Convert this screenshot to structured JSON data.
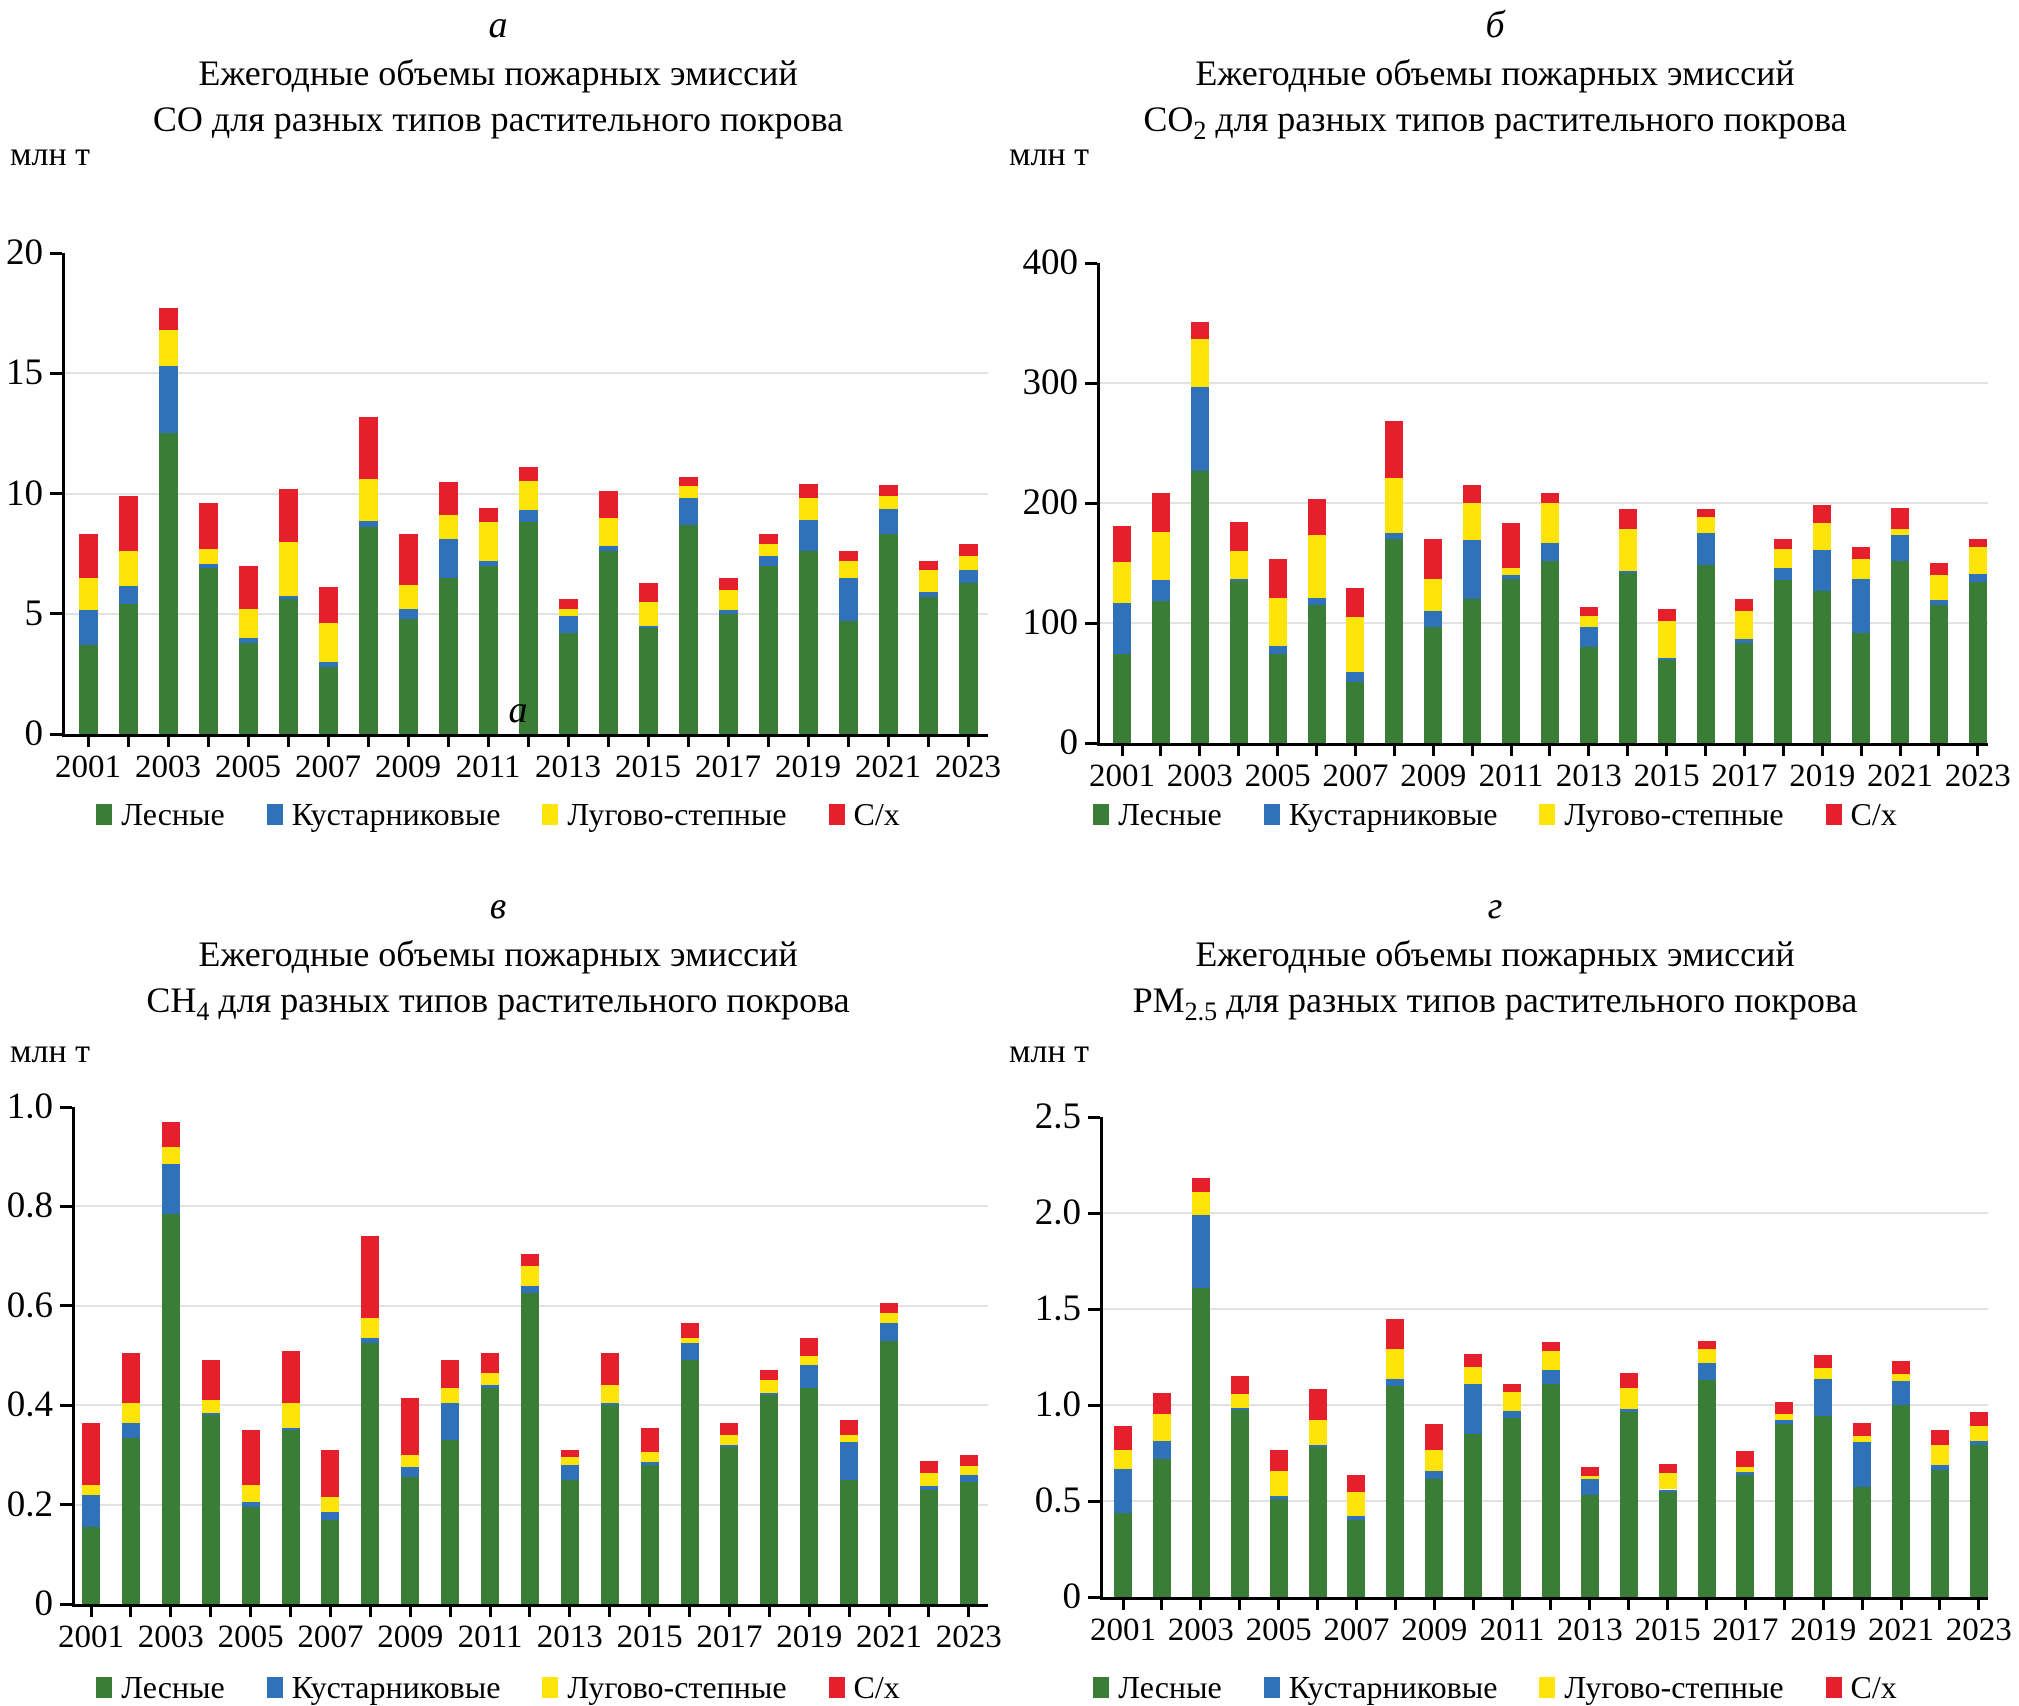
{
  "page": {
    "background": "#ffffff"
  },
  "colors": {
    "forest_green": "#3A7D36",
    "shrub_blue": "#2F72B9",
    "meadow_yellow": "#FFE40B",
    "agri_red": "#E51F2C",
    "gridline": "#E2E2E2",
    "axis": "#000000"
  },
  "legend": [
    {
      "label": "Лесные",
      "color": "#3A7D36"
    },
    {
      "label": "Кустарниковые",
      "color": "#2F72B9"
    },
    {
      "label": "Лугово-степные",
      "color": "#FFE40B"
    },
    {
      "label": "С/х",
      "color": "#E51F2C"
    }
  ],
  "stray_label": "а",
  "chart_data": [
    {
      "type": "bar",
      "stacked": true,
      "panel_letter": "а",
      "title_line1": "Ежегодные объемы пожарных эмиссий",
      "formula": "CO",
      "formula_sub": "",
      "title_rest": " для разных типов растительного покрова",
      "ylabel": "млн т",
      "ylim": [
        0,
        20
      ],
      "yticks": [
        0,
        5,
        10,
        15,
        20
      ],
      "ytick_labels": [
        "0",
        "5",
        "10",
        "15",
        "20"
      ],
      "grid": true,
      "categories": [
        2001,
        2002,
        2003,
        2004,
        2005,
        2006,
        2007,
        2008,
        2009,
        2010,
        2011,
        2012,
        2013,
        2014,
        2015,
        2016,
        2017,
        2018,
        2019,
        2020,
        2021,
        2022,
        2023
      ],
      "xtick_labels": [
        "2001",
        "2003",
        "2005",
        "2007",
        "2009",
        "2011",
        "2013",
        "2015",
        "2017",
        "2019",
        "2021",
        "2023"
      ],
      "series": [
        {
          "name": "Лесные",
          "color": "#3A7D36",
          "values": [
            3.7,
            5.4,
            12.5,
            6.9,
            3.8,
            5.6,
            2.8,
            8.6,
            4.8,
            6.5,
            7.0,
            8.8,
            4.2,
            7.6,
            4.4,
            8.7,
            5.0,
            7.0,
            7.6,
            4.7,
            8.3,
            5.7,
            6.3
          ]
        },
        {
          "name": "Кустарниковые",
          "color": "#2F72B9",
          "values": [
            1.45,
            0.75,
            2.8,
            0.15,
            0.2,
            0.15,
            0.2,
            0.25,
            0.4,
            1.6,
            0.2,
            0.5,
            0.7,
            0.2,
            0.1,
            1.1,
            0.15,
            0.4,
            1.3,
            1.8,
            1.05,
            0.2,
            0.5
          ]
        },
        {
          "name": "Лугово-степные",
          "color": "#FFE40B",
          "values": [
            1.35,
            1.45,
            1.5,
            0.65,
            1.2,
            2.25,
            1.6,
            1.75,
            1.0,
            1.0,
            1.6,
            1.2,
            0.3,
            1.2,
            1.0,
            0.5,
            0.85,
            0.5,
            0.9,
            0.7,
            0.55,
            0.9,
            0.6
          ]
        },
        {
          "name": "С/х",
          "color": "#E51F2C",
          "values": [
            1.8,
            2.3,
            0.9,
            1.9,
            1.8,
            2.2,
            1.5,
            2.6,
            2.1,
            1.4,
            0.6,
            0.6,
            0.4,
            1.1,
            0.8,
            0.4,
            0.5,
            0.4,
            0.6,
            0.4,
            0.45,
            0.4,
            0.5
          ]
        }
      ]
    },
    {
      "type": "bar",
      "stacked": true,
      "panel_letter": "б",
      "title_line1": "Ежегодные объемы пожарных эмиссий",
      "formula": "CO",
      "formula_sub": "2",
      "title_rest": " для разных типов растительного покрова",
      "ylabel": "млн т",
      "ylim": [
        0,
        400
      ],
      "yticks": [
        0,
        100,
        200,
        300,
        400
      ],
      "ytick_labels": [
        "0",
        "100",
        "200",
        "300",
        "400"
      ],
      "grid": true,
      "categories": [
        2001,
        2002,
        2003,
        2004,
        2005,
        2006,
        2007,
        2008,
        2009,
        2010,
        2011,
        2012,
        2013,
        2014,
        2015,
        2016,
        2017,
        2018,
        2019,
        2020,
        2021,
        2022,
        2023
      ],
      "xtick_labels": [
        "2001",
        "2003",
        "2005",
        "2007",
        "2009",
        "2011",
        "2013",
        "2015",
        "2017",
        "2019",
        "2021",
        "2023"
      ],
      "series": [
        {
          "name": "Лесные",
          "color": "#3A7D36",
          "values": [
            74,
            118,
            227,
            135,
            74,
            115,
            51,
            170,
            97,
            120,
            137,
            152,
            80,
            142,
            69,
            148,
            83,
            136,
            127,
            92,
            152,
            115,
            134
          ]
        },
        {
          "name": "Кустарниковые",
          "color": "#2F72B9",
          "values": [
            43,
            18,
            70,
            2,
            7,
            6,
            8,
            5,
            13,
            49,
            3,
            15,
            17,
            1,
            2,
            27,
            4,
            10,
            34,
            45,
            21,
            4,
            7
          ]
        },
        {
          "name": "Лугово-степные",
          "color": "#FFE40B",
          "values": [
            34,
            40,
            40,
            23,
            40,
            52,
            46,
            46,
            27,
            31,
            6,
            33,
            9,
            35,
            31,
            13,
            23,
            16,
            22,
            16,
            5,
            21,
            22
          ]
        },
        {
          "name": "С/х",
          "color": "#E51F2C",
          "values": [
            30,
            32,
            14,
            24,
            32,
            30,
            24,
            47,
            33,
            15,
            37,
            8,
            7,
            17,
            10,
            7,
            10,
            8,
            15,
            10,
            18,
            10,
            7
          ]
        }
      ]
    },
    {
      "type": "bar",
      "stacked": true,
      "panel_letter": "в",
      "title_line1": "Ежегодные объемы пожарных эмиссий",
      "formula": "CH",
      "formula_sub": "4",
      "title_rest": " для разных типов растительного покрова",
      "ylabel": "млн т",
      "ylim": [
        0,
        1.0
      ],
      "yticks": [
        0,
        0.2,
        0.4,
        0.6,
        0.8,
        1.0
      ],
      "ytick_labels": [
        "0",
        "0.2",
        "0.4",
        "0.6",
        "0.8",
        "1.0"
      ],
      "grid": true,
      "categories": [
        2001,
        2002,
        2003,
        2004,
        2005,
        2006,
        2007,
        2008,
        2009,
        2010,
        2011,
        2012,
        2013,
        2014,
        2015,
        2016,
        2017,
        2018,
        2019,
        2020,
        2021,
        2022,
        2023
      ],
      "xtick_labels": [
        "2001",
        "2003",
        "2005",
        "2007",
        "2009",
        "2011",
        "2013",
        "2015",
        "2017",
        "2019",
        "2021",
        "2023"
      ],
      "series": [
        {
          "name": "Лесные",
          "color": "#3A7D36",
          "values": [
            0.155,
            0.335,
            0.785,
            0.38,
            0.195,
            0.35,
            0.17,
            0.525,
            0.255,
            0.33,
            0.435,
            0.625,
            0.25,
            0.4,
            0.28,
            0.49,
            0.315,
            0.42,
            0.435,
            0.25,
            0.53,
            0.23,
            0.245
          ]
        },
        {
          "name": "Кустарниковые",
          "color": "#2F72B9",
          "values": [
            0.065,
            0.03,
            0.1,
            0.005,
            0.01,
            0.005,
            0.015,
            0.01,
            0.02,
            0.075,
            0.005,
            0.015,
            0.03,
            0.005,
            0.005,
            0.035,
            0.005,
            0.005,
            0.045,
            0.075,
            0.035,
            0.007,
            0.015
          ]
        },
        {
          "name": "Лугово-степные",
          "color": "#FFE40B",
          "values": [
            0.02,
            0.04,
            0.035,
            0.025,
            0.035,
            0.05,
            0.03,
            0.04,
            0.025,
            0.03,
            0.025,
            0.04,
            0.015,
            0.035,
            0.02,
            0.01,
            0.02,
            0.025,
            0.02,
            0.015,
            0.02,
            0.026,
            0.018
          ]
        },
        {
          "name": "С/х",
          "color": "#E51F2C",
          "values": [
            0.125,
            0.1,
            0.05,
            0.08,
            0.11,
            0.105,
            0.095,
            0.165,
            0.115,
            0.055,
            0.04,
            0.025,
            0.015,
            0.065,
            0.05,
            0.03,
            0.025,
            0.02,
            0.035,
            0.03,
            0.02,
            0.024,
            0.022
          ]
        }
      ]
    },
    {
      "type": "bar",
      "stacked": true,
      "panel_letter": "г",
      "title_line1": "Ежегодные объемы пожарных эмиссий",
      "formula": "PM",
      "formula_sub": "2.5",
      "title_rest": " для разных типов растительного покрова",
      "ylabel": "млн т",
      "ylim": [
        0,
        2.5
      ],
      "yticks": [
        0,
        0.5,
        1.0,
        1.5,
        2.0,
        2.5
      ],
      "ytick_labels": [
        "0",
        "0.5",
        "1.0",
        "1.5",
        "2.0",
        "2.5"
      ],
      "grid": true,
      "categories": [
        2001,
        2002,
        2003,
        2004,
        2005,
        2006,
        2007,
        2008,
        2009,
        2010,
        2011,
        2012,
        2013,
        2014,
        2015,
        2016,
        2017,
        2018,
        2019,
        2020,
        2021,
        2022,
        2023
      ],
      "xtick_labels": [
        "2001",
        "2003",
        "2005",
        "2007",
        "2009",
        "2011",
        "2013",
        "2015",
        "2017",
        "2019",
        "2021",
        "2023"
      ],
      "series": [
        {
          "name": "Лесные",
          "color": "#3A7D36",
          "values": [
            0.44,
            0.72,
            1.61,
            0.975,
            0.51,
            0.78,
            0.4,
            1.1,
            0.615,
            0.85,
            0.93,
            1.11,
            0.53,
            0.965,
            0.545,
            1.13,
            0.635,
            0.9,
            0.945,
            0.575,
            1.0,
            0.66,
            0.79
          ]
        },
        {
          "name": "Кустарниковые",
          "color": "#2F72B9",
          "values": [
            0.225,
            0.095,
            0.38,
            0.01,
            0.015,
            0.01,
            0.02,
            0.035,
            0.04,
            0.26,
            0.04,
            0.07,
            0.085,
            0.015,
            0.015,
            0.09,
            0.015,
            0.02,
            0.19,
            0.23,
            0.125,
            0.025,
            0.025
          ]
        },
        {
          "name": "Лугово-степные",
          "color": "#FFE40B",
          "values": [
            0.1,
            0.14,
            0.12,
            0.07,
            0.13,
            0.13,
            0.125,
            0.155,
            0.11,
            0.09,
            0.1,
            0.1,
            0.015,
            0.11,
            0.085,
            0.07,
            0.025,
            0.035,
            0.06,
            0.035,
            0.035,
            0.105,
            0.075
          ]
        },
        {
          "name": "С/х",
          "color": "#E51F2C",
          "values": [
            0.125,
            0.105,
            0.07,
            0.095,
            0.11,
            0.165,
            0.09,
            0.16,
            0.135,
            0.065,
            0.04,
            0.05,
            0.045,
            0.075,
            0.05,
            0.045,
            0.085,
            0.06,
            0.065,
            0.065,
            0.07,
            0.08,
            0.075
          ]
        }
      ]
    }
  ]
}
